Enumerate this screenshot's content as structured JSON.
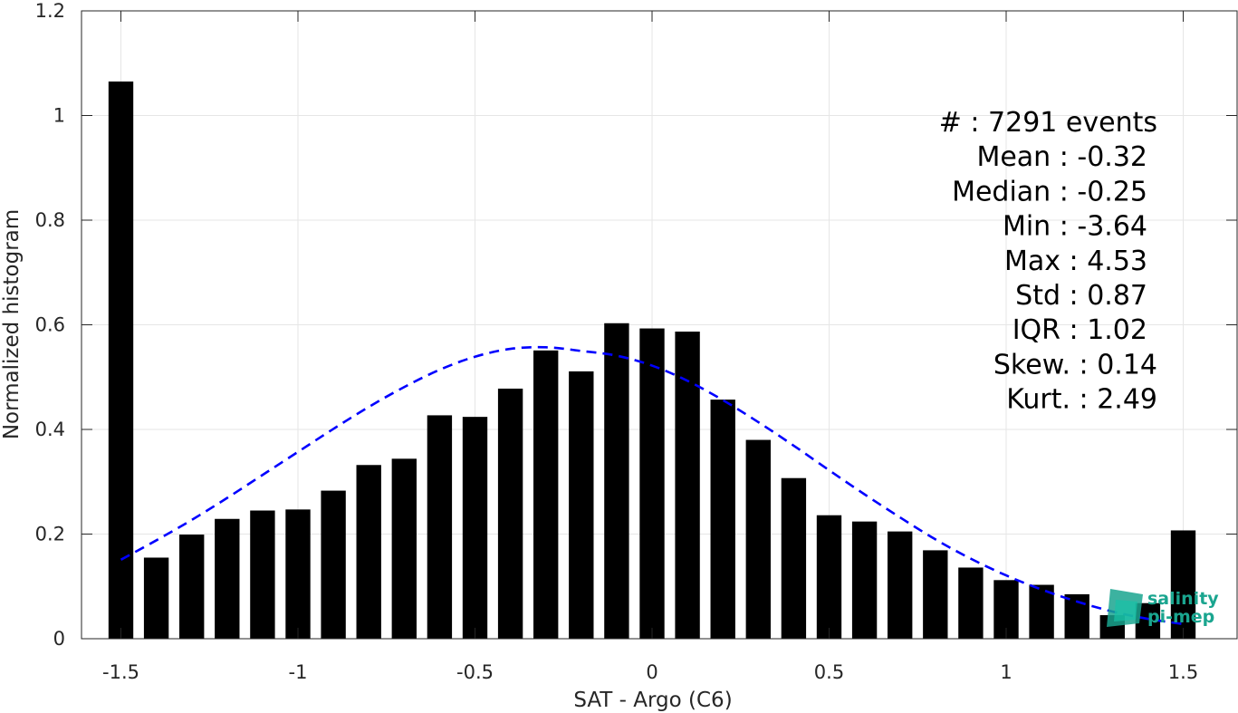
{
  "chart_data": {
    "type": "bar",
    "xlabel": "SAT - Argo (C6)",
    "ylabel": "Normalized histogram",
    "xlim": [
      -1.6,
      1.6
    ],
    "ylim": [
      0,
      1.2
    ],
    "grid": true,
    "x_ticks": [
      -1.5,
      -1,
      -0.5,
      0,
      0.5,
      1,
      1.5
    ],
    "x_tick_labels": [
      "-1.5",
      "-1",
      "-0.5",
      "0",
      "0.5",
      "1",
      "1.5"
    ],
    "y_ticks": [
      0,
      0.2,
      0.4,
      0.6,
      0.8,
      1,
      1.2
    ],
    "y_tick_labels": [
      "0",
      "0.2",
      "0.4",
      "0.6",
      "0.8",
      "1",
      "1.2"
    ],
    "bar_width": 0.07,
    "bars": {
      "x": [
        -1.5,
        -1.4,
        -1.3,
        -1.2,
        -1.1,
        -1.0,
        -0.9,
        -0.8,
        -0.7,
        -0.6,
        -0.5,
        -0.4,
        -0.3,
        -0.2,
        -0.1,
        0.0,
        0.1,
        0.2,
        0.3,
        0.4,
        0.5,
        0.6,
        0.7,
        0.8,
        0.9,
        1.0,
        1.1,
        1.2,
        1.3,
        1.4,
        1.5
      ],
      "values": [
        1.065,
        0.155,
        0.199,
        0.229,
        0.245,
        0.247,
        0.283,
        0.332,
        0.344,
        0.427,
        0.424,
        0.478,
        0.551,
        0.511,
        0.603,
        0.593,
        0.587,
        0.457,
        0.38,
        0.307,
        0.236,
        0.224,
        0.205,
        0.169,
        0.136,
        0.112,
        0.103,
        0.085,
        0.045,
        0.068,
        0.207
      ],
      "color": "#000000"
    },
    "fit_curve": {
      "style": "dashed",
      "color": "#0000ff",
      "x": [
        -1.5,
        -1.4,
        -1.3,
        -1.2,
        -1.1,
        -1.0,
        -0.9,
        -0.8,
        -0.7,
        -0.6,
        -0.5,
        -0.4,
        -0.3,
        -0.2,
        -0.1,
        0.0,
        0.1,
        0.2,
        0.3,
        0.4,
        0.5,
        0.6,
        0.7,
        0.8,
        0.9,
        1.0,
        1.1,
        1.2,
        1.3,
        1.4,
        1.5
      ],
      "y": [
        0.151,
        0.188,
        0.227,
        0.269,
        0.313,
        0.357,
        0.401,
        0.443,
        0.481,
        0.514,
        0.539,
        0.554,
        0.557,
        0.55,
        0.541,
        0.522,
        0.493,
        0.456,
        0.414,
        0.369,
        0.322,
        0.276,
        0.232,
        0.19,
        0.153,
        0.121,
        0.094,
        0.071,
        0.052,
        0.038,
        0.028
      ]
    },
    "stats": [
      "#  : 7291 events",
      "Mean : -0.32",
      "Median : -0.25",
      "Min : -3.64",
      "Max : 4.53",
      "Std : 0.87",
      "IQR : 1.02",
      "Skew. : 0.14",
      "Kurt. : 2.49"
    ]
  },
  "logo": {
    "line1": "salinity",
    "line2": "pi-mep",
    "color": "#1aa58f"
  }
}
